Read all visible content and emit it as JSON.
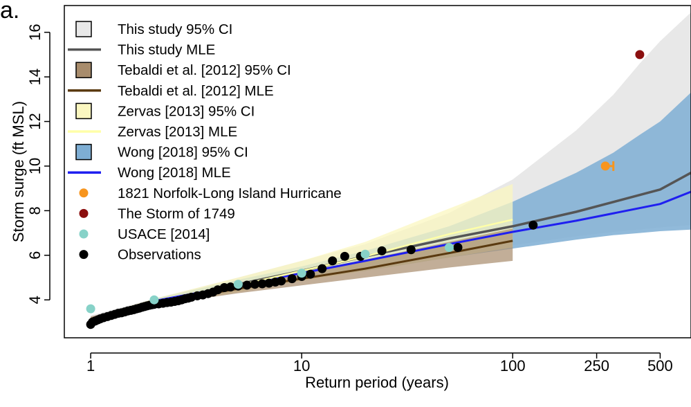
{
  "panel_label": "a.",
  "chart_data": {
    "type": "line",
    "xlabel": "Return period (years)",
    "ylabel": "Storm surge (ft MSL)",
    "x_scale": "log",
    "xlim": [
      0.75,
      700
    ],
    "ylim": [
      2.3,
      17.2
    ],
    "x_ticks": [
      {
        "value": 1,
        "label": "1"
      },
      {
        "value": 10,
        "label": "10"
      },
      {
        "value": 100,
        "label": "100"
      },
      {
        "value": 250,
        "label": "250"
      },
      {
        "value": 500,
        "label": "500"
      }
    ],
    "y_ticks": [
      {
        "value": 4,
        "label": "4"
      },
      {
        "value": 6,
        "label": "6"
      },
      {
        "value": 8,
        "label": "8"
      },
      {
        "value": 10,
        "label": "10"
      },
      {
        "value": 12,
        "label": "12"
      },
      {
        "value": 14,
        "label": "14"
      },
      {
        "value": 16,
        "label": "16"
      }
    ],
    "grid": false,
    "legend_position": "top-left",
    "bands": [
      {
        "name": "This study 95% CI",
        "color": "#e8e8e8",
        "x": [
          1,
          2,
          5,
          10,
          20,
          50,
          100,
          200,
          300,
          400,
          500,
          700
        ],
        "lower": [
          2.9,
          3.75,
          4.55,
          5.05,
          5.5,
          6.05,
          6.45,
          6.85,
          7.05,
          7.15,
          7.25,
          7.35
        ],
        "upper": [
          3.3,
          4.05,
          5.0,
          5.75,
          6.5,
          7.9,
          9.4,
          11.6,
          13.2,
          14.6,
          15.6,
          16.9
        ]
      },
      {
        "name": "Wong [2018] 95% CI",
        "color": "#7eaed4",
        "opacity": 0.85,
        "x": [
          2,
          5,
          10,
          20,
          50,
          100,
          200,
          300,
          400,
          500,
          700
        ],
        "lower": [
          3.8,
          4.5,
          4.95,
          5.3,
          5.9,
          6.3,
          6.7,
          6.9,
          7.0,
          7.08,
          7.15
        ],
        "upper": [
          4.05,
          4.9,
          5.5,
          6.2,
          7.3,
          8.4,
          9.7,
          10.6,
          11.4,
          12.0,
          13.3
        ]
      },
      {
        "name": "Zervas [2013] 95% CI",
        "color": "#fbf7c0",
        "opacity": 0.75,
        "x": [
          1,
          2,
          5,
          10,
          20,
          50,
          100
        ],
        "lower": [
          2.9,
          3.7,
          4.35,
          4.85,
          5.3,
          5.9,
          6.35
        ],
        "upper": [
          3.2,
          4.05,
          5.0,
          5.75,
          6.6,
          8.1,
          9.2
        ]
      },
      {
        "name": "Tebaldi et al. [2012] 95% CI",
        "color": "#a88c6c",
        "opacity": 0.7,
        "x": [
          1,
          2,
          5,
          10,
          20,
          50,
          100
        ],
        "lower": [
          3.1,
          3.75,
          4.3,
          4.65,
          5.0,
          5.45,
          5.75
        ],
        "upper": [
          3.25,
          3.95,
          4.65,
          5.25,
          5.8,
          6.6,
          7.2
        ]
      }
    ],
    "series": [
      {
        "name": "This study MLE",
        "color": "#555555",
        "width": 3.5,
        "x": [
          1,
          2,
          5,
          10,
          20,
          50,
          100,
          200,
          500,
          700
        ],
        "y": [
          2.95,
          3.85,
          4.7,
          5.3,
          5.95,
          6.75,
          7.3,
          7.95,
          8.95,
          9.7
        ]
      },
      {
        "name": "Wong [2018] MLE",
        "color": "#1f1ff0",
        "width": 3,
        "x": [
          2,
          5,
          10,
          20,
          50,
          100,
          200,
          500,
          700
        ],
        "y": [
          3.95,
          4.65,
          5.2,
          5.75,
          6.5,
          7.05,
          7.55,
          8.3,
          8.85
        ]
      },
      {
        "name": "Tebaldi et al. [2012] MLE",
        "color": "#5a3a10",
        "width": 3,
        "x": [
          1,
          2,
          5,
          10,
          20,
          50,
          100
        ],
        "y": [
          3.15,
          3.85,
          4.5,
          4.95,
          5.4,
          6.1,
          6.65
        ]
      },
      {
        "name": "Zervas [2013] MLE",
        "color": "#ffffa8",
        "width": 2.5,
        "x": [
          1,
          2,
          5,
          10,
          20,
          50,
          100
        ],
        "y": [
          3.0,
          3.85,
          4.65,
          5.3,
          5.95,
          6.95,
          7.6
        ]
      }
    ],
    "points": [
      {
        "name": "Observations",
        "color": "#000000",
        "x": [
          1.0,
          1.02,
          1.05,
          1.08,
          1.11,
          1.15,
          1.2,
          1.25,
          1.3,
          1.35,
          1.4,
          1.45,
          1.5,
          1.55,
          1.6,
          1.65,
          1.7,
          1.75,
          1.8,
          1.85,
          1.9,
          1.95,
          2.0,
          2.1,
          2.2,
          2.3,
          2.4,
          2.5,
          2.6,
          2.7,
          2.8,
          2.9,
          3.0,
          3.2,
          3.4,
          3.6,
          3.8,
          4.0,
          4.3,
          4.6,
          5.0,
          5.5,
          6.0,
          6.5,
          7.0,
          7.5,
          8.0,
          9.0,
          10.0,
          11.0,
          12.5,
          14.0,
          16.0,
          19.0,
          24.0,
          33.0,
          55.0,
          125.0
        ],
        "y": [
          2.9,
          3.0,
          3.05,
          3.1,
          3.15,
          3.2,
          3.25,
          3.3,
          3.35,
          3.4,
          3.42,
          3.46,
          3.5,
          3.53,
          3.56,
          3.6,
          3.63,
          3.67,
          3.7,
          3.73,
          3.76,
          3.78,
          3.8,
          3.82,
          3.85,
          3.88,
          3.9,
          3.93,
          3.96,
          4.0,
          4.05,
          4.08,
          4.12,
          4.18,
          4.22,
          4.28,
          4.35,
          4.45,
          4.55,
          4.58,
          4.62,
          4.66,
          4.7,
          4.72,
          4.75,
          4.8,
          4.85,
          4.95,
          5.05,
          5.15,
          5.4,
          5.75,
          5.95,
          5.95,
          6.2,
          6.25,
          6.35,
          7.35
        ]
      },
      {
        "name": "USACE [2014]",
        "color": "#87d2c8",
        "x": [
          1.0,
          2.0,
          5.0,
          10.0,
          20.0,
          50.0
        ],
        "y": [
          3.6,
          4.0,
          4.7,
          5.2,
          6.05,
          6.35
        ]
      },
      {
        "name": "The Storm of 1749",
        "color": "#8b0f0f",
        "x": [
          400
        ],
        "y": [
          15.0
        ]
      },
      {
        "name": "1821 Norfolk-Long Island Hurricane",
        "color": "#f7951e",
        "x": [
          275
        ],
        "y": [
          10.0
        ],
        "x_interval": [
          275,
          300
        ]
      }
    ],
    "legend": [
      {
        "label": "This study 95% CI",
        "kind": "box",
        "color": "#e8e8e8"
      },
      {
        "label": "This study MLE",
        "kind": "line",
        "color": "#555555"
      },
      {
        "label": "Tebaldi et al. [2012] 95% CI",
        "kind": "box",
        "color": "#a88c6c"
      },
      {
        "label": "Tebaldi et al. [2012] MLE",
        "kind": "line",
        "color": "#5a3a10"
      },
      {
        "label": "Zervas [2013] 95% CI",
        "kind": "box",
        "color": "#fbf7c0"
      },
      {
        "label": "Zervas [2013] MLE",
        "kind": "line",
        "color": "#ffffa8"
      },
      {
        "label": "Wong [2018] 95% CI",
        "kind": "box",
        "color": "#7eaed4"
      },
      {
        "label": "Wong [2018] MLE",
        "kind": "line",
        "color": "#1f1ff0"
      },
      {
        "label": "1821 Norfolk-Long Island Hurricane",
        "kind": "point",
        "color": "#f7951e"
      },
      {
        "label": "The Storm of 1749",
        "kind": "point",
        "color": "#8b0f0f"
      },
      {
        "label": "USACE [2014]",
        "kind": "point",
        "color": "#87d2c8"
      },
      {
        "label": "Observations",
        "kind": "point",
        "color": "#000000"
      }
    ]
  }
}
